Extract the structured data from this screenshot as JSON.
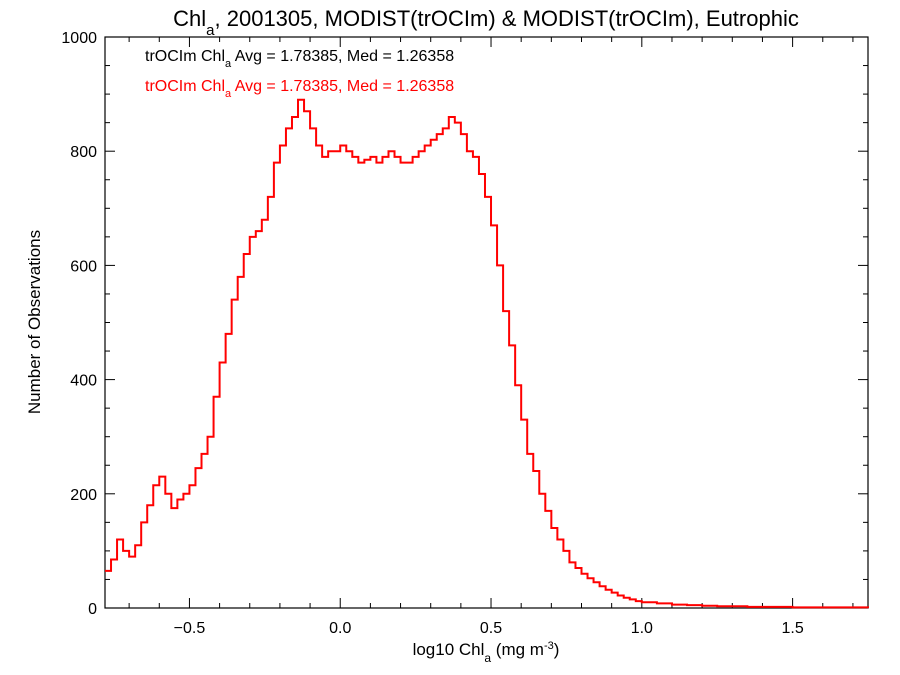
{
  "chart_data": {
    "type": "line",
    "title_main": "Chl",
    "title_sub": "a",
    "title_rest": ", 2001305, MODIST(trOCIm) & MODIST(trOCIm), Eutrophic",
    "xlabel_pre": "log10 Chl",
    "xlabel_sub": "a",
    "xlabel_post": " (mg m",
    "xlabel_sup": "-3",
    "xlabel_end": ")",
    "ylabel": "Number of Observations",
    "xlim": [
      -0.78,
      1.75
    ],
    "ylim": [
      0,
      1000
    ],
    "x_ticks": [
      -0.5,
      0.0,
      0.5,
      1.0,
      1.5
    ],
    "x_tick_labels": [
      "−0.5",
      "0.0",
      "0.5",
      "1.0",
      "1.5"
    ],
    "y_ticks": [
      0,
      200,
      400,
      600,
      800,
      1000
    ],
    "y_tick_labels": [
      "0",
      "200",
      "400",
      "600",
      "800",
      "1000"
    ],
    "annotations": [
      {
        "pre": "trOCIm Chl",
        "sub": "a",
        "post": " Avg = 1.78385, Med = 1.26358",
        "color": "#000000"
      },
      {
        "pre": "trOCIm Chl",
        "sub": "a",
        "post": " Avg = 1.78385, Med = 1.26358",
        "color": "#ff0000"
      }
    ],
    "series": [
      {
        "color": "#ff0000",
        "x": [
          -0.78,
          -0.76,
          -0.74,
          -0.72,
          -0.7,
          -0.68,
          -0.66,
          -0.64,
          -0.62,
          -0.6,
          -0.58,
          -0.56,
          -0.54,
          -0.52,
          -0.5,
          -0.48,
          -0.46,
          -0.44,
          -0.42,
          -0.4,
          -0.38,
          -0.36,
          -0.34,
          -0.32,
          -0.3,
          -0.28,
          -0.26,
          -0.24,
          -0.22,
          -0.2,
          -0.18,
          -0.16,
          -0.14,
          -0.12,
          -0.1,
          -0.08,
          -0.06,
          -0.04,
          -0.02,
          0.0,
          0.02,
          0.04,
          0.06,
          0.08,
          0.1,
          0.12,
          0.14,
          0.16,
          0.18,
          0.2,
          0.22,
          0.24,
          0.26,
          0.28,
          0.3,
          0.32,
          0.34,
          0.36,
          0.38,
          0.4,
          0.42,
          0.44,
          0.46,
          0.48,
          0.5,
          0.52,
          0.54,
          0.56,
          0.58,
          0.6,
          0.62,
          0.64,
          0.66,
          0.68,
          0.7,
          0.72,
          0.74,
          0.76,
          0.78,
          0.8,
          0.82,
          0.84,
          0.86,
          0.88,
          0.9,
          0.92,
          0.94,
          0.96,
          0.98,
          1.0,
          1.05,
          1.1,
          1.15,
          1.2,
          1.25,
          1.3,
          1.35,
          1.4,
          1.45,
          1.5,
          1.55,
          1.6,
          1.65,
          1.7,
          1.75
        ],
        "values": [
          65,
          85,
          120,
          100,
          90,
          110,
          150,
          180,
          215,
          230,
          200,
          175,
          190,
          200,
          215,
          245,
          270,
          300,
          370,
          430,
          480,
          540,
          580,
          620,
          650,
          660,
          680,
          720,
          780,
          810,
          840,
          860,
          890,
          870,
          840,
          810,
          790,
          800,
          800,
          810,
          800,
          790,
          780,
          785,
          790,
          780,
          790,
          800,
          790,
          780,
          780,
          790,
          800,
          810,
          820,
          830,
          840,
          860,
          850,
          830,
          800,
          790,
          760,
          720,
          670,
          600,
          520,
          460,
          390,
          330,
          270,
          240,
          200,
          170,
          140,
          120,
          100,
          80,
          70,
          60,
          52,
          45,
          38,
          32,
          27,
          22,
          18,
          15,
          12,
          10,
          8,
          6,
          5,
          4,
          3,
          3,
          2,
          2,
          2,
          1,
          1,
          1,
          1,
          1,
          0
        ]
      }
    ]
  }
}
